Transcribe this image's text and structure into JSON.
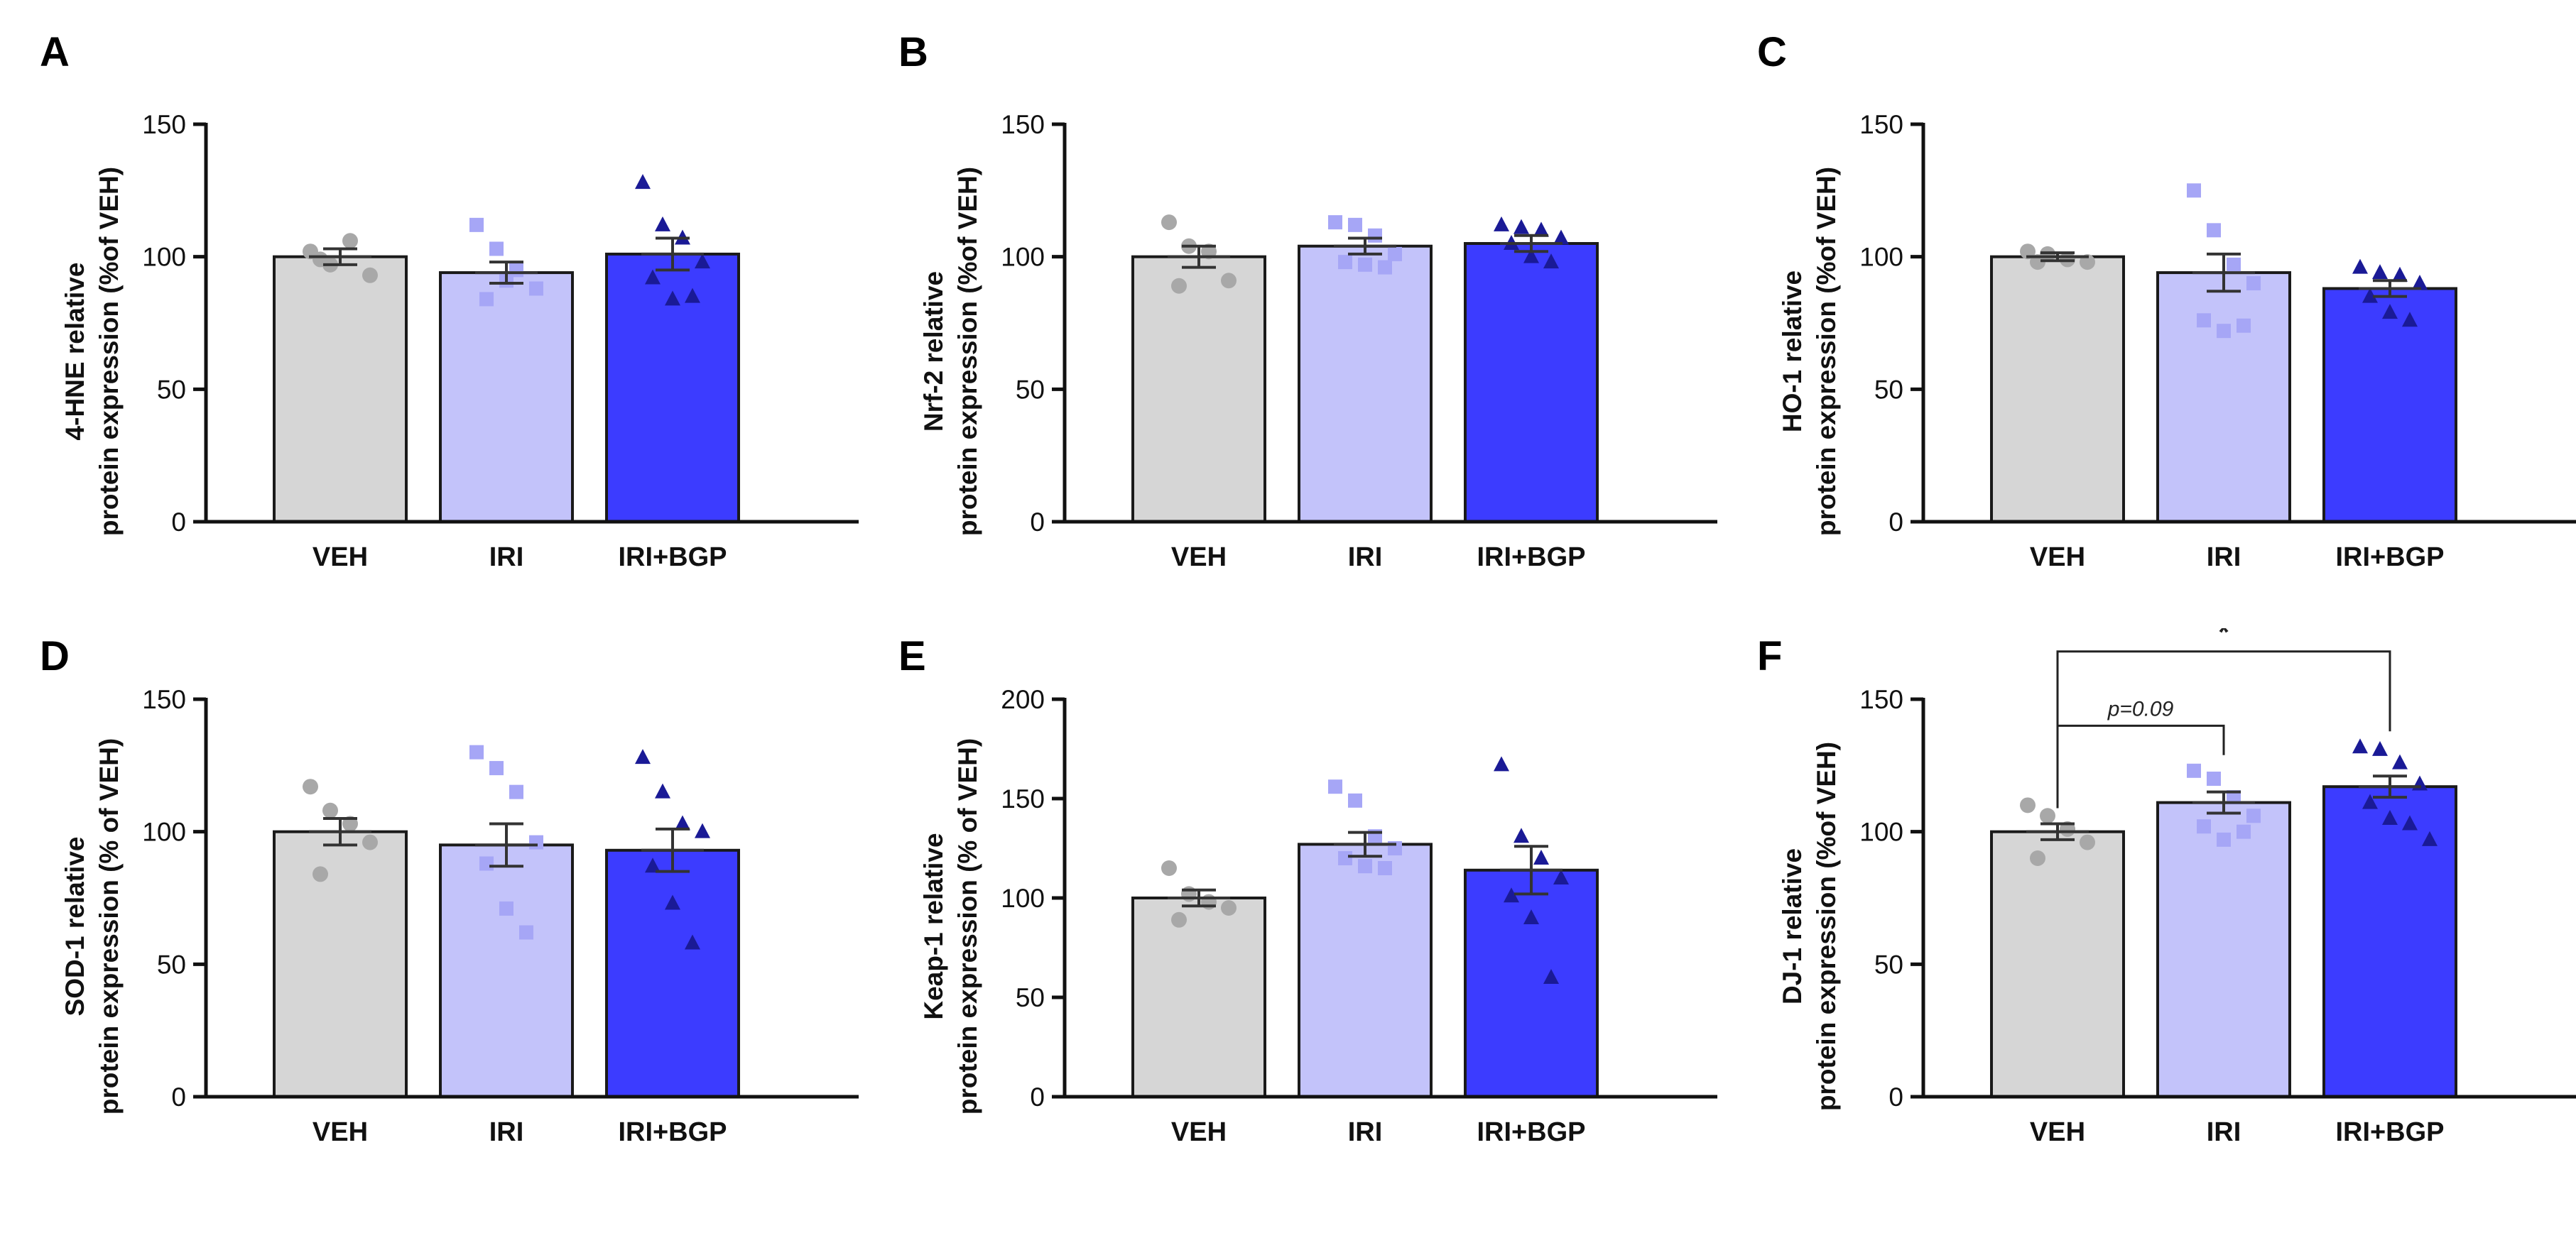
{
  "chart_data": [
    {
      "panel": "A",
      "type": "bar",
      "categories": [
        "VEH",
        "IRI",
        "IRI+BGP"
      ],
      "ylabel": [
        "4-HNE relative",
        "protein expression (%of VEH)"
      ],
      "ylim": [
        0,
        150
      ],
      "yticks": [
        0,
        50,
        100,
        150
      ],
      "values": [
        100,
        94,
        101
      ],
      "sem": [
        3,
        4,
        6
      ],
      "points": [
        [
          102,
          97,
          106,
          93,
          99
        ],
        [
          112,
          103,
          95,
          88,
          84,
          91
        ],
        [
          128,
          112,
          107,
          98,
          92,
          84,
          85
        ]
      ]
    },
    {
      "panel": "B",
      "type": "bar",
      "categories": [
        "VEH",
        "IRI",
        "IRI+BGP"
      ],
      "ylabel": [
        "Nrf-2 relative",
        "protein expression (%of VEH)"
      ],
      "ylim": [
        0,
        150
      ],
      "yticks": [
        0,
        50,
        100,
        150
      ],
      "values": [
        100,
        104,
        105
      ],
      "sem": [
        4,
        3,
        3
      ],
      "points": [
        [
          113,
          104,
          102,
          91,
          89
        ],
        [
          113,
          112,
          108,
          101,
          98,
          97,
          96
        ],
        [
          112,
          111,
          110,
          107,
          105,
          100,
          98
        ]
      ]
    },
    {
      "panel": "C",
      "type": "bar",
      "categories": [
        "VEH",
        "IRI",
        "IRI+BGP"
      ],
      "ylabel": [
        "HO-1 relative",
        "protein expression (%of VEH)"
      ],
      "ylim": [
        0,
        150
      ],
      "yticks": [
        0,
        50,
        100,
        150
      ],
      "values": [
        100,
        94,
        88
      ],
      "sem": [
        1.5,
        7,
        3
      ],
      "points": [
        [
          102,
          101,
          99,
          98,
          98
        ],
        [
          125,
          110,
          97,
          90,
          76,
          72,
          74
        ],
        [
          96,
          94,
          93,
          90,
          85,
          79,
          76
        ]
      ]
    },
    {
      "panel": "D",
      "type": "bar",
      "categories": [
        "VEH",
        "IRI",
        "IRI+BGP"
      ],
      "ylabel": [
        "SOD-1 relative",
        "protein expression (% of VEH)"
      ],
      "ylim": [
        0,
        150
      ],
      "yticks": [
        0,
        50,
        100,
        150
      ],
      "values": [
        100,
        95,
        93
      ],
      "sem": [
        5,
        8,
        8
      ],
      "points": [
        [
          117,
          108,
          103,
          96,
          84
        ],
        [
          130,
          124,
          115,
          96,
          88,
          71,
          62
        ],
        [
          128,
          115,
          103,
          100,
          87,
          73,
          58
        ]
      ]
    },
    {
      "panel": "E",
      "type": "bar",
      "categories": [
        "VEH",
        "IRI",
        "IRI+BGP"
      ],
      "ylabel": [
        "Keap-1 relative",
        "protein expression (% of VEH)"
      ],
      "ylim": [
        0,
        200
      ],
      "yticks": [
        0,
        50,
        100,
        150,
        200
      ],
      "values": [
        100,
        127,
        114
      ],
      "sem": [
        4,
        6,
        12
      ],
      "points": [
        [
          115,
          102,
          98,
          95,
          89
        ],
        [
          156,
          149,
          131,
          125,
          120,
          116,
          115
        ],
        [
          167,
          131,
          120,
          110,
          101,
          90,
          60
        ]
      ]
    },
    {
      "panel": "F",
      "type": "bar",
      "categories": [
        "VEH",
        "IRI",
        "IRI+BGP"
      ],
      "ylabel": [
        "DJ-1 relative",
        "protein expression (%of VEH)"
      ],
      "ylim": [
        0,
        150
      ],
      "yticks": [
        0,
        50,
        100,
        150
      ],
      "values": [
        100,
        111,
        117
      ],
      "sem": [
        3,
        4,
        4
      ],
      "points": [
        [
          110,
          106,
          101,
          96,
          90
        ],
        [
          123,
          120,
          113,
          106,
          102,
          97,
          100
        ],
        [
          132,
          131,
          126,
          118,
          111,
          105,
          103,
          97
        ]
      ],
      "annotations": [
        {
          "from": 0,
          "to": 1,
          "label": "p=0.09",
          "italic": true,
          "y": 140
        },
        {
          "from": 0,
          "to": 2,
          "label": "*",
          "italic": false,
          "y": 168
        }
      ]
    }
  ],
  "colors": {
    "bars": [
      "#d6d6d6",
      "#c3c3fa",
      "#3c3cff"
    ],
    "points": [
      "#a8a8a8",
      "#a6a6f6",
      "#1a1a96"
    ],
    "marker_shapes": [
      "circle",
      "square",
      "triangle"
    ]
  }
}
